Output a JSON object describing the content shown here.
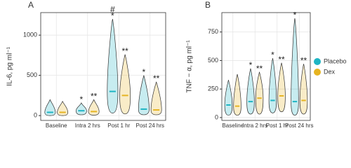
{
  "chart_data": [
    {
      "type": "violin",
      "title": "A",
      "y_label": "IL-6, pg ml⁻¹",
      "categories": [
        "Baseline",
        "Intra 2 hrs",
        "Post 1 hr",
        "Post 24 hrs"
      ],
      "ylim": [
        -60,
        1280
      ],
      "yticks": [
        0,
        500,
        1000
      ],
      "grid": true,
      "legend": "right",
      "series": [
        {
          "name": "Placebo",
          "color": "#1fb5c4",
          "min": [
            0,
            10,
            30,
            10
          ],
          "values": [
            40,
            60,
            300,
            80
          ],
          "max": [
            200,
            160,
            1200,
            500
          ],
          "annotations": [
            null,
            [
              "*"
            ],
            [
              "#",
              "*"
            ],
            [
              "*"
            ]
          ]
        },
        {
          "name": "Dex",
          "color": "#e6b422",
          "min": [
            0,
            5,
            20,
            10
          ],
          "values": [
            40,
            50,
            250,
            70
          ],
          "max": [
            180,
            200,
            760,
            420
          ],
          "annotations": [
            null,
            [
              "**"
            ],
            [
              "**"
            ],
            [
              "**"
            ]
          ]
        }
      ]
    },
    {
      "type": "violin",
      "title": "B",
      "y_label": "TNF − α, pg ml⁻¹",
      "categories": [
        "Baseline",
        "Intra 2 hrs",
        "Post 1 hr",
        "Post 24 hrs"
      ],
      "ylim": [
        -25,
        920
      ],
      "yticks": [
        0,
        250,
        500,
        750
      ],
      "grid": true,
      "legend": "right",
      "series": [
        {
          "name": "Placebo",
          "color": "#1fb5c4",
          "min": [
            20,
            30,
            40,
            20
          ],
          "values": [
            110,
            140,
            150,
            140
          ],
          "max": [
            330,
            430,
            520,
            870
          ],
          "annotations": [
            null,
            [
              "*"
            ],
            [
              "*"
            ],
            [
              "*"
            ]
          ]
        },
        {
          "name": "Dex",
          "color": "#e6b422",
          "min": [
            20,
            30,
            50,
            30
          ],
          "values": [
            100,
            170,
            190,
            150
          ],
          "max": [
            380,
            400,
            480,
            470
          ],
          "annotations": [
            null,
            [
              "**"
            ],
            [
              "**"
            ],
            [
              "**"
            ]
          ]
        }
      ]
    }
  ]
}
